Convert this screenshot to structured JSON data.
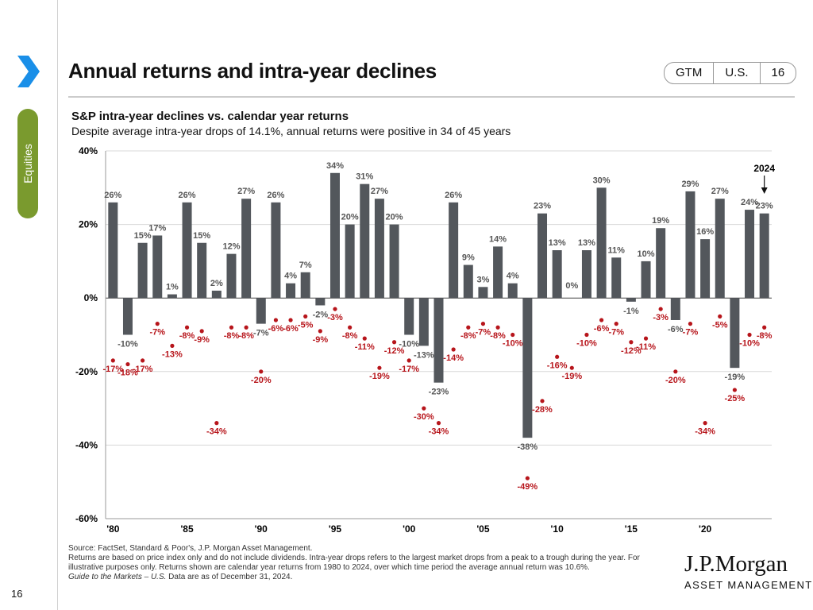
{
  "header": {
    "title": "Annual returns and intra-year declines",
    "badge": [
      "GTM",
      "U.S.",
      "16"
    ],
    "section": "Equities",
    "page_number": "16"
  },
  "colors": {
    "bars": "#53575c",
    "declines": "#b7151b",
    "accent_blue": "#1a8fe8",
    "section_green": "#7a9a2e"
  },
  "chart_data": {
    "type": "bar",
    "title": "S&P intra-year declines vs. calendar year returns",
    "subtitle": "Despite average intra-year drops of 14.1%, annual returns were positive in 34 of 45 years",
    "x": [
      1980,
      1981,
      1982,
      1983,
      1984,
      1985,
      1986,
      1987,
      1988,
      1989,
      1990,
      1991,
      1992,
      1993,
      1994,
      1995,
      1996,
      1997,
      1998,
      1999,
      2000,
      2001,
      2002,
      2003,
      2004,
      2005,
      2006,
      2007,
      2008,
      2009,
      2010,
      2011,
      2012,
      2013,
      2014,
      2015,
      2016,
      2017,
      2018,
      2019,
      2020,
      2021,
      2022,
      2023,
      2024
    ],
    "series": [
      {
        "type": "bar",
        "values": [
          26,
          -10,
          15,
          17,
          1,
          26,
          15,
          2,
          12,
          27,
          -7,
          26,
          4,
          7,
          -2,
          34,
          20,
          31,
          27,
          20,
          -10,
          -13,
          -23,
          26,
          9,
          3,
          14,
          4,
          -38,
          23,
          13,
          0,
          13,
          30,
          11,
          -1,
          10,
          19,
          -6,
          29,
          16,
          27,
          -19,
          24,
          23
        ]
      },
      {
        "type": "scatter",
        "values": [
          -17,
          -18,
          -17,
          -7,
          -13,
          -8,
          -9,
          -34,
          -8,
          -8,
          -20,
          -6,
          -6,
          -5,
          -9,
          -3,
          -8,
          -11,
          -19,
          -12,
          -17,
          -30,
          -34,
          -14,
          -8,
          -7,
          -8,
          -10,
          -49,
          -28,
          -16,
          -19,
          -10,
          -6,
          -7,
          -12,
          -11,
          -3,
          -20,
          -7,
          -34,
          -5,
          -25,
          -10,
          -8
        ]
      }
    ],
    "yticks": [
      "40%",
      "20%",
      "0%",
      "-20%",
      "-40%",
      "-60%"
    ],
    "ylim": [
      -60,
      40
    ],
    "xtick_labels": [
      "'80",
      "'85",
      "'90",
      "'95",
      "'00",
      "'05",
      "'10",
      "'15",
      "'20"
    ],
    "annotation": "2024",
    "grid": "horizontal"
  },
  "footnote": {
    "source": "Source: FactSet, Standard & Poor's, J.P. Morgan Asset Management.",
    "notes": "Returns are based on price index only and do not include dividends.  Intra-year drops refers to the largest market drops from a peak to a trough during the year. For illustrative purposes only. Returns shown are calendar year returns from 1980 to 2024, over which time period the average annual return was 10.6%.",
    "guide": "Guide to the Markets – U.S.",
    "date": " Data are as of December 31, 2024."
  },
  "logo": {
    "line1": "J.P.Morgan",
    "line2": "ASSET MANAGEMENT"
  }
}
